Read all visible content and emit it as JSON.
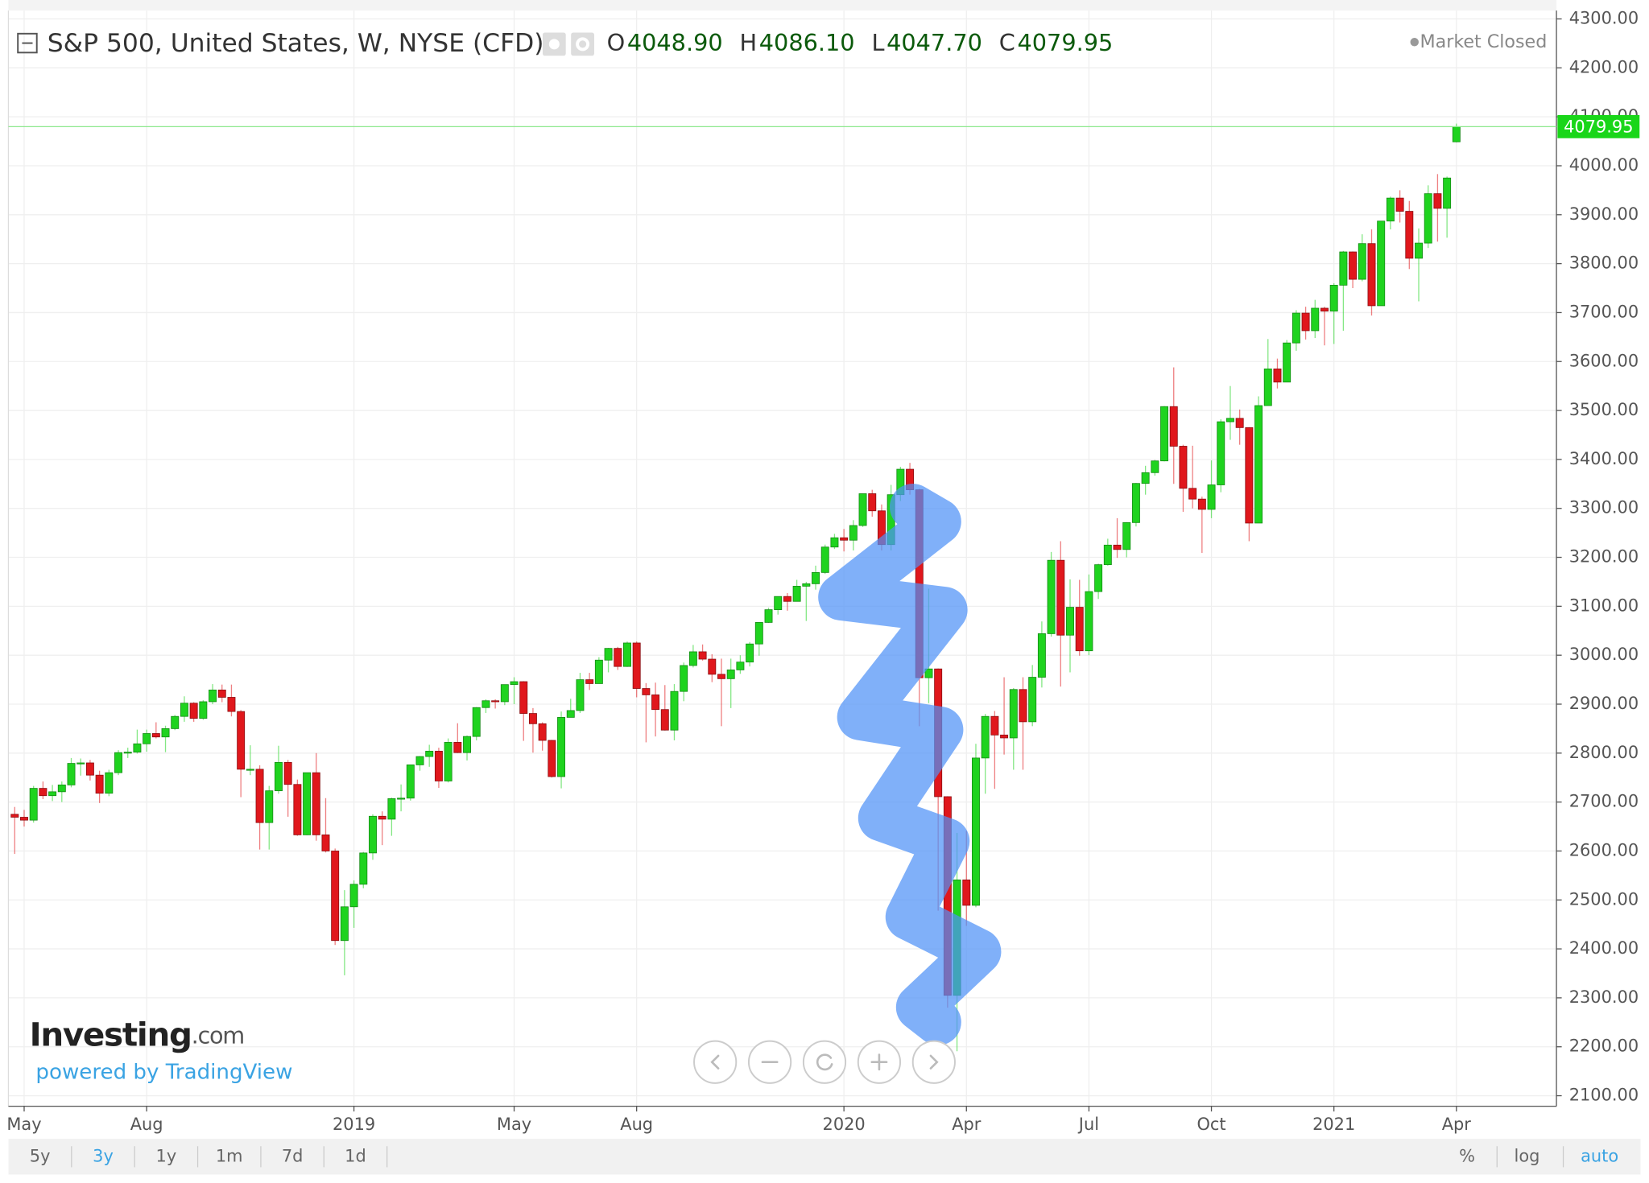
{
  "chart_data": {
    "type": "candlestick",
    "title": "S&P 500, United States, W, NYSE (CFD)",
    "market_status": "Market Closed",
    "legend_ohlc": [
      {
        "label": "O",
        "value": "4048.90"
      },
      {
        "label": "H",
        "value": "4086.10"
      },
      {
        "label": "L",
        "value": "4047.70"
      },
      {
        "label": "C",
        "value": "4079.95"
      }
    ],
    "categories": [
      null,
      "May",
      null,
      null,
      null,
      null,
      null,
      null,
      null,
      null,
      null,
      null,
      null,
      null,
      "Aug",
      null,
      null,
      null,
      null,
      null,
      null,
      null,
      null,
      null,
      null,
      null,
      null,
      null,
      null,
      null,
      null,
      null,
      null,
      null,
      null,
      null,
      "2019",
      null,
      null,
      null,
      null,
      null,
      null,
      null,
      null,
      null,
      null,
      null,
      null,
      null,
      null,
      null,
      null,
      "May",
      null,
      null,
      null,
      null,
      null,
      null,
      null,
      null,
      null,
      null,
      null,
      null,
      "Aug",
      null,
      null,
      null,
      null,
      null,
      null,
      null,
      null,
      null,
      null,
      null,
      null,
      null,
      null,
      null,
      null,
      null,
      null,
      null,
      null,
      null,
      "2020",
      null,
      null,
      null,
      null,
      null,
      null,
      null,
      null,
      null,
      null,
      null,
      null,
      "Apr",
      null,
      null,
      null,
      null,
      null,
      null,
      null,
      null,
      null,
      null,
      null,
      null,
      "Jul",
      null,
      null,
      null,
      null,
      null,
      null,
      null,
      null,
      null,
      null,
      null,
      null,
      "Oct",
      null,
      null,
      null,
      null,
      null,
      null,
      null,
      null,
      null,
      null,
      null,
      null,
      "2021",
      null,
      null,
      null,
      null,
      null,
      null,
      null,
      null,
      null,
      null,
      null,
      null,
      "Apr"
    ],
    "open": [
      2675,
      2669,
      2663,
      2728,
      2713,
      2721,
      2735,
      2779,
      2780,
      2755,
      2718,
      2760,
      2802,
      2802,
      2819,
      2840,
      2833,
      2850,
      2875,
      2902,
      2871,
      2905,
      2929,
      2914,
      2885,
      2767,
      2767,
      2658,
      2723,
      2781,
      2736,
      2633,
      2760,
      2633,
      2600,
      2417,
      2486,
      2532,
      2596,
      2671,
      2665,
      2707,
      2708,
      2776,
      2793,
      2804,
      2743,
      2822,
      2801,
      2834,
      2893,
      2907,
      2905,
      2940,
      2946,
      2881,
      2860,
      2826,
      2752,
      2873,
      2887,
      2950,
      2942,
      2990,
      3014,
      2977,
      3025,
      2932,
      2919,
      2889,
      2847,
      2926,
      2979,
      3007,
      2992,
      2961,
      2952,
      2970,
      2986,
      3023,
      3067,
      3093,
      3120,
      3110,
      3141,
      3146,
      3169,
      3221,
      3240,
      3235,
      3265,
      3330,
      3295,
      3226,
      3328,
      3380,
      3338,
      2954,
      2972,
      2711,
      2305,
      2541,
      2489,
      2790,
      2875,
      2837,
      2831,
      2930,
      2864,
      2955,
      3044,
      3194,
      3041,
      3098,
      3009,
      3130,
      3185,
      3225,
      3216,
      3271,
      3351,
      3373,
      3397,
      3508,
      3427,
      3341,
      3319,
      3298,
      3348,
      3477,
      3484,
      3465,
      3270,
      3510,
      3585,
      3558,
      3638,
      3699,
      3663,
      3709,
      3703,
      3756,
      3824,
      3768,
      3841,
      3714,
      3887,
      3934,
      3907,
      3811,
      3842,
      3943,
      3913,
      4048.9
    ],
    "high": [
      2690,
      2684,
      2733,
      2742,
      2735,
      2742,
      2790,
      2789,
      2786,
      2764,
      2766,
      2806,
      2811,
      2848,
      2848,
      2863,
      2856,
      2878,
      2916,
      2904,
      2908,
      2941,
      2940,
      2940,
      2888,
      2816,
      2775,
      2733,
      2815,
      2786,
      2746,
      2760,
      2800,
      2708,
      2605,
      2520,
      2540,
      2598,
      2675,
      2681,
      2709,
      2736,
      2776,
      2794,
      2817,
      2811,
      2830,
      2861,
      2836,
      2894,
      2910,
      2910,
      2940,
      2955,
      2947,
      2892,
      2863,
      2827,
      2885,
      2911,
      2964,
      2964,
      2996,
      3015,
      3017,
      3028,
      3028,
      2943,
      2944,
      2939,
      2941,
      2985,
      3021,
      3022,
      3002,
      2993,
      2993,
      3000,
      3027,
      3067,
      3097,
      3120,
      3127,
      3154,
      3150,
      3183,
      3226,
      3248,
      3258,
      3276,
      3330,
      3338,
      3308,
      3348,
      3385,
      3393,
      3340,
      3136,
      2973,
      2712,
      2637,
      2641,
      2819,
      2880,
      2886,
      2955,
      2933,
      2955,
      2980,
      3069,
      3211,
      3233,
      3155,
      3154,
      3165,
      3187,
      3238,
      3280,
      3272,
      3352,
      3387,
      3399,
      3509,
      3588,
      3430,
      3428,
      3324,
      3398,
      3482,
      3550,
      3502,
      3466,
      3529,
      3646,
      3606,
      3644,
      3705,
      3712,
      3726,
      3712,
      3760,
      3826,
      3825,
      3860,
      3870,
      3887,
      3937,
      3950,
      3928,
      3872,
      3960,
      3983,
      3978,
      4086.1
    ],
    "low": [
      2594,
      2650,
      2658,
      2706,
      2702,
      2700,
      2730,
      2754,
      2744,
      2698,
      2712,
      2755,
      2790,
      2799,
      2803,
      2830,
      2802,
      2847,
      2864,
      2864,
      2868,
      2900,
      2904,
      2875,
      2710,
      2755,
      2603,
      2603,
      2717,
      2670,
      2631,
      2632,
      2621,
      2597,
      2408,
      2346,
      2443,
      2524,
      2582,
      2612,
      2631,
      2681,
      2703,
      2764,
      2772,
      2729,
      2740,
      2800,
      2785,
      2826,
      2882,
      2891,
      2898,
      2900,
      2825,
      2801,
      2805,
      2750,
      2728,
      2873,
      2882,
      2929,
      2942,
      2965,
      2970,
      2976,
      2914,
      2822,
      2834,
      2846,
      2826,
      2906,
      2975,
      2989,
      2945,
      2855,
      2892,
      2962,
      2977,
      2999,
      3066,
      3083,
      3091,
      3110,
      3070,
      3134,
      3166,
      3217,
      3212,
      3214,
      3262,
      3283,
      3214,
      3214,
      3315,
      3328,
      2855,
      2902,
      2478,
      2280,
      2191,
      2447,
      2485,
      2717,
      2727,
      2797,
      2766,
      2766,
      2855,
      2934,
      3038,
      2936,
      2965,
      2999,
      3000,
      3115,
      3183,
      3199,
      3200,
      3263,
      3328,
      3367,
      3396,
      3350,
      3293,
      3300,
      3209,
      3280,
      3333,
      3440,
      3430,
      3233,
      3270,
      3510,
      3545,
      3558,
      3622,
      3645,
      3648,
      3633,
      3636,
      3663,
      3750,
      3764,
      3694,
      3714,
      3870,
      3884,
      3789,
      3723,
      3832,
      3845,
      3853,
      4047.7
    ],
    "close": [
      2669,
      2663,
      2728,
      2713,
      2721,
      2735,
      2779,
      2780,
      2755,
      2718,
      2760,
      2801,
      2802,
      2819,
      2840,
      2833,
      2850,
      2875,
      2902,
      2871,
      2905,
      2929,
      2914,
      2885,
      2767,
      2767,
      2658,
      2723,
      2781,
      2736,
      2633,
      2760,
      2633,
      2600,
      2417,
      2486,
      2532,
      2596,
      2671,
      2665,
      2707,
      2708,
      2776,
      2793,
      2804,
      2743,
      2822,
      2801,
      2834,
      2893,
      2907,
      2905,
      2940,
      2946,
      2881,
      2860,
      2826,
      2752,
      2873,
      2887,
      2950,
      2942,
      2990,
      3014,
      2977,
      3025,
      2932,
      2919,
      2889,
      2847,
      2926,
      2979,
      3007,
      2992,
      2961,
      2952,
      2970,
      2986,
      3023,
      3067,
      3093,
      3120,
      3110,
      3141,
      3146,
      3169,
      3221,
      3240,
      3235,
      3265,
      3330,
      3295,
      3226,
      3328,
      3380,
      3338,
      2954,
      2972,
      2711,
      2305,
      2541,
      2489,
      2790,
      2875,
      2837,
      2831,
      2930,
      2864,
      2955,
      3044,
      3194,
      3041,
      3098,
      3009,
      3130,
      3185,
      3225,
      3216,
      3271,
      3351,
      3373,
      3397,
      3508,
      3427,
      3341,
      3319,
      3298,
      3348,
      3477,
      3484,
      3465,
      3270,
      3510,
      3585,
      3558,
      3638,
      3699,
      3663,
      3709,
      3703,
      3756,
      3824,
      3768,
      3841,
      3714,
      3887,
      3934,
      3907,
      3811,
      3842,
      3943,
      3913,
      3975,
      4079.95
    ],
    "up_color": "#1fd31f",
    "down_color": "#e0171c",
    "ylim": [
      2100,
      4300
    ],
    "yticks": [
      {
        "value": 2100,
        "label": "2100.00"
      },
      {
        "value": 2200,
        "label": "2200.00"
      },
      {
        "value": 2300,
        "label": "2300.00"
      },
      {
        "value": 2400,
        "label": "2400.00"
      },
      {
        "value": 2500,
        "label": "2500.00"
      },
      {
        "value": 2600,
        "label": "2600.00"
      },
      {
        "value": 2700,
        "label": "2700.00"
      },
      {
        "value": 2800,
        "label": "2800.00"
      },
      {
        "value": 2900,
        "label": "2900.00"
      },
      {
        "value": 3000,
        "label": "3000.00"
      },
      {
        "value": 3100,
        "label": "3100.00"
      },
      {
        "value": 3200,
        "label": "3200.00"
      },
      {
        "value": 3300,
        "label": "3300.00"
      },
      {
        "value": 3400,
        "label": "3400.00"
      },
      {
        "value": 3500,
        "label": "3500.00"
      },
      {
        "value": 3600,
        "label": "3600.00"
      },
      {
        "value": 3700,
        "label": "3700.00"
      },
      {
        "value": 3800,
        "label": "3800.00"
      },
      {
        "value": 3900,
        "label": "3900.00"
      },
      {
        "value": 4000,
        "label": "4000.00"
      },
      {
        "value": 4100,
        "label": "4100.00"
      },
      {
        "value": 4200,
        "label": "4200.00"
      },
      {
        "value": 4300,
        "label": "4300.00"
      }
    ],
    "last_price": {
      "value": 4079.95,
      "label": "4079.95"
    },
    "grid": true
  },
  "branding": {
    "logo": "Investing",
    "logo_suffix": ".com",
    "powered": "powered by TradingView"
  },
  "toolbar": {
    "ranges": [
      "5y",
      "3y",
      "1y",
      "1m",
      "7d",
      "1d"
    ],
    "options": [
      "%",
      "log",
      "auto"
    ],
    "active": [
      "3y",
      "auto"
    ]
  }
}
